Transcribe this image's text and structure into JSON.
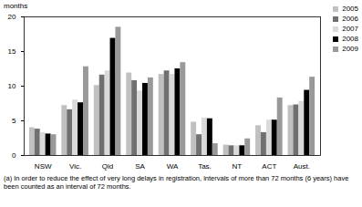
{
  "chart_data": {
    "type": "bar",
    "y_label": "months",
    "footnote": "(a) In order to reduce the effect of very long delays in registration, intervals of more than 72 months (6 years) have been counted as an interval of 72 months.",
    "categories": [
      "NSW",
      "Vic.",
      "Qld",
      "SA",
      "WA",
      "Tas.",
      "NT",
      "ACT",
      "Aust."
    ],
    "series": [
      {
        "name": "2005",
        "color": "#c0c0c0",
        "values": [
          4.0,
          7.2,
          10.1,
          11.9,
          11.7,
          4.8,
          1.5,
          4.3,
          7.2
        ]
      },
      {
        "name": "2006",
        "color": "#707070",
        "values": [
          3.8,
          6.6,
          11.6,
          10.8,
          12.2,
          3.0,
          1.4,
          3.3,
          7.3
        ]
      },
      {
        "name": "2007",
        "color": "#dadada",
        "values": [
          3.3,
          8.0,
          12.2,
          9.3,
          11.7,
          5.4,
          1.4,
          5.1,
          7.8
        ]
      },
      {
        "name": "2008",
        "color": "#000000",
        "values": [
          3.1,
          7.6,
          16.9,
          10.4,
          12.5,
          5.3,
          1.4,
          5.1,
          9.4
        ]
      },
      {
        "name": "2009",
        "color": "#999999",
        "values": [
          3.0,
          12.8,
          18.5,
          11.2,
          13.4,
          1.7,
          2.4,
          8.3,
          11.3
        ]
      }
    ],
    "ylim": [
      0,
      20
    ],
    "yticks": [
      0,
      5,
      10,
      15,
      20
    ],
    "grid": false,
    "legend": "top-right"
  }
}
